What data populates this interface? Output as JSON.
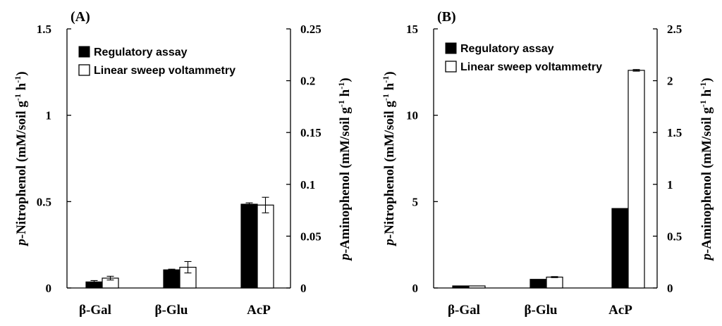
{
  "chart_data": [
    {
      "type": "bar",
      "panel_label": "(A)",
      "categories": [
        "β-Gal",
        "β-Glu",
        "AcP"
      ],
      "series": [
        {
          "name": "Regulatory assay",
          "axis": "left",
          "fill": "#000000",
          "values": [
            0.035,
            0.105,
            0.485
          ],
          "errors": [
            0.008,
            0.004,
            0.008
          ]
        },
        {
          "name": "Linear sweep voltammetry",
          "axis": "right",
          "fill": "#ffffff",
          "values": [
            0.0095,
            0.02,
            0.08
          ],
          "errors": [
            0.0018,
            0.0055,
            0.0075
          ]
        }
      ],
      "left_axis": {
        "label_italic": "p",
        "label_rest": "-Nitrophenol (mM/soil g",
        "sup1": "-1",
        "label_h": " h",
        "sup2": "-1",
        "close": ")",
        "ylim": [
          0,
          1.5
        ],
        "ticks": [
          0,
          0.5,
          1,
          1.5
        ],
        "tick_labels": [
          "0",
          "0.5",
          "1",
          "1.5"
        ]
      },
      "right_axis": {
        "label_italic": "p",
        "label_rest": "-Aminophenol (mM/soil g",
        "sup1": "-1",
        "label_h": " h",
        "sup2": "-1",
        "close": ")",
        "ylim": [
          0,
          0.25
        ],
        "ticks": [
          0,
          0.05,
          0.1,
          0.15,
          0.2,
          0.25
        ],
        "tick_labels": [
          "0",
          "0.05",
          "0.1",
          "0.15",
          "0.2",
          "0.25"
        ]
      },
      "legend": {
        "position": "top-left",
        "entries": [
          "Regulatory assay",
          "Linear sweep voltammetry"
        ]
      }
    },
    {
      "type": "bar",
      "panel_label": "(B)",
      "categories": [
        "β-Gal",
        "β-Glu",
        "AcP"
      ],
      "series": [
        {
          "name": "Regulatory assay",
          "axis": "left",
          "fill": "#000000",
          "values": [
            0.12,
            0.5,
            4.6
          ],
          "errors": [
            0.0,
            0.0,
            0.0
          ]
        },
        {
          "name": "Linear sweep voltammetry",
          "axis": "right",
          "fill": "#ffffff",
          "values": [
            0.02,
            0.105,
            2.1
          ],
          "errors": [
            0.0,
            0.005,
            0.008
          ]
        }
      ],
      "left_axis": {
        "label_italic": "p",
        "label_rest": "-Nitrophenol (mM/soil g",
        "sup1": "-1",
        "label_h": " h",
        "sup2": "-1",
        "close": ")",
        "ylim": [
          0,
          15
        ],
        "ticks": [
          0,
          5,
          10,
          15
        ],
        "tick_labels": [
          "0",
          "5",
          "10",
          "15"
        ]
      },
      "right_axis": {
        "label_italic": "p",
        "label_rest": "-Aminophenol (mM/soil g",
        "sup1": "-1",
        "label_h": " h",
        "sup2": "-1",
        "close": ")",
        "ylim": [
          0,
          2.5
        ],
        "ticks": [
          0,
          0.5,
          1,
          1.5,
          2,
          2.5
        ],
        "tick_labels": [
          "0",
          "0.5",
          "1",
          "1.5",
          "2",
          "2.5"
        ]
      },
      "legend": {
        "position": "top-left",
        "entries": [
          "Regulatory assay",
          "Linear sweep voltammetry"
        ]
      }
    }
  ]
}
